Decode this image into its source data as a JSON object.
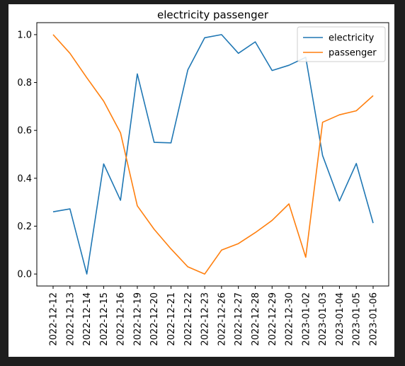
{
  "chart_data": {
    "type": "line",
    "title": "electricity passenger",
    "xlabel": "",
    "ylabel": "",
    "categories": [
      "2022-12-12",
      "2022-12-13",
      "2022-12-14",
      "2022-12-15",
      "2022-12-16",
      "2022-12-19",
      "2022-12-20",
      "2022-12-21",
      "2022-12-22",
      "2022-12-23",
      "2022-12-26",
      "2022-12-27",
      "2022-12-28",
      "2022-12-29",
      "2022-12-30",
      "2023-01-02",
      "2023-01-03",
      "2023-01-04",
      "2023-01-05",
      "2023-01-06"
    ],
    "series": [
      {
        "name": "electricity",
        "color": "#1f77b4",
        "values": [
          0.26,
          0.272,
          0.0,
          0.46,
          0.308,
          0.836,
          0.55,
          0.548,
          0.853,
          0.987,
          1.0,
          0.922,
          0.97,
          0.85,
          0.872,
          0.905,
          0.495,
          0.305,
          0.462,
          0.213
        ]
      },
      {
        "name": "passenger",
        "color": "#ff7f0e",
        "values": [
          1.0,
          0.922,
          0.82,
          0.722,
          0.59,
          0.285,
          0.187,
          0.105,
          0.03,
          0.0,
          0.1,
          0.127,
          0.173,
          0.224,
          0.293,
          0.07,
          0.634,
          0.665,
          0.682,
          0.745
        ]
      }
    ],
    "ylim": [
      -0.05,
      1.05
    ],
    "yticks": [
      "0.0",
      "0.2",
      "0.4",
      "0.6",
      "0.8",
      "1.0"
    ],
    "grid": false,
    "legend": "top-right"
  }
}
